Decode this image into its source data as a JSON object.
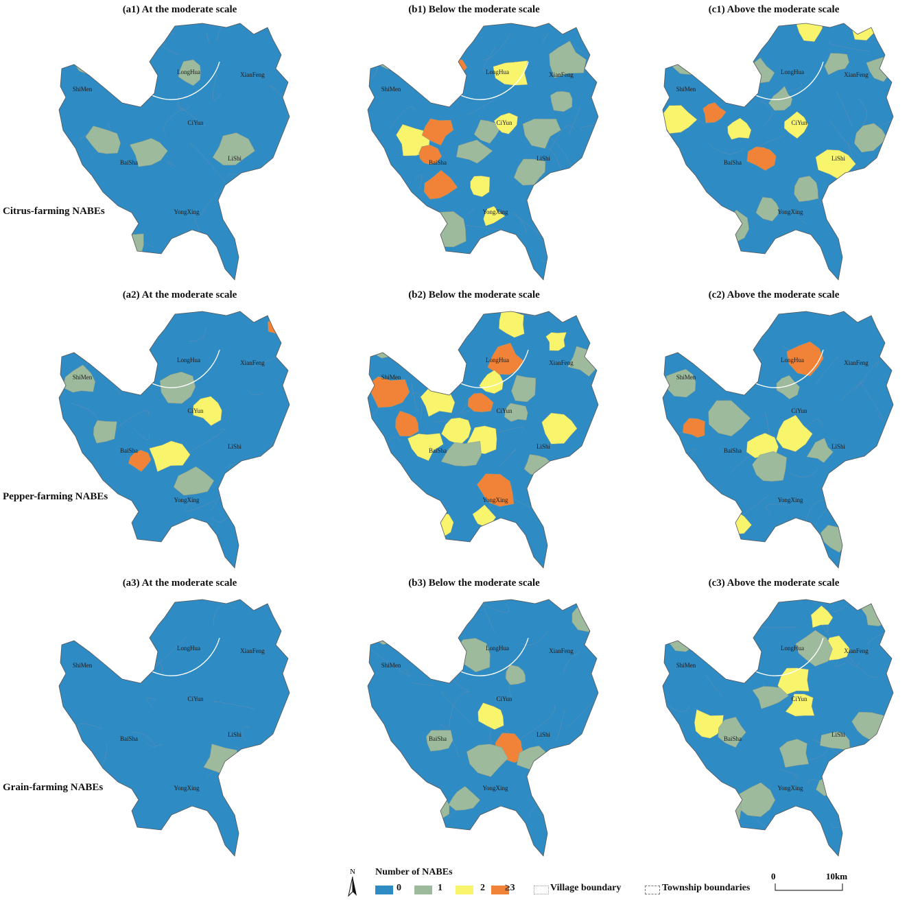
{
  "colors": {
    "class_0": "#2e8bc4",
    "class_1": "#9dbb9c",
    "class_2": "#f8f56d",
    "class_3": "#f08337",
    "township_line": "#555555",
    "village_line": "#6a8fb0"
  },
  "row_labels": [
    "Citrus-farming NABEs",
    "Pepper-farming NABEs",
    "Grain-farming NABEs"
  ],
  "town_names": [
    "LongHua",
    "XianFeng",
    "ShiMen",
    "CiYun",
    "BaiSha",
    "LiShi",
    "YongXing"
  ],
  "panels": [
    {
      "id": "a1",
      "title": "(a1) At the moderate scale",
      "blobs": [
        [
          0.12,
          0.16,
          1
        ],
        [
          0.55,
          0.2,
          1
        ],
        [
          0.2,
          0.47,
          1
        ],
        [
          0.38,
          0.5,
          1
        ],
        [
          0.72,
          0.5,
          1
        ],
        [
          0.3,
          0.86,
          1
        ],
        [
          0.98,
          0.02,
          1
        ]
      ]
    },
    {
      "id": "b1",
      "title": "(b1) Below the moderate scale",
      "blobs": [
        [
          0.13,
          0.14,
          1
        ],
        [
          0.36,
          0.18,
          3
        ],
        [
          0.6,
          0.2,
          2
        ],
        [
          0.82,
          0.15,
          1
        ],
        [
          0.93,
          0.06,
          1
        ],
        [
          0.2,
          0.46,
          2
        ],
        [
          0.26,
          0.52,
          3
        ],
        [
          0.3,
          0.42,
          3
        ],
        [
          0.5,
          0.42,
          1
        ],
        [
          0.58,
          0.4,
          2
        ],
        [
          0.72,
          0.42,
          1
        ],
        [
          0.3,
          0.64,
          3
        ],
        [
          0.47,
          0.63,
          2
        ],
        [
          0.52,
          0.75,
          2
        ],
        [
          0.35,
          0.8,
          1
        ],
        [
          0.45,
          0.5,
          1
        ],
        [
          0.8,
          0.3,
          1
        ],
        [
          0.68,
          0.58,
          1
        ]
      ]
    },
    {
      "id": "c1",
      "title": "(c1) Above the moderate scale",
      "blobs": [
        [
          0.13,
          0.14,
          1
        ],
        [
          0.62,
          0.03,
          2
        ],
        [
          0.83,
          0.02,
          2
        ],
        [
          0.72,
          0.16,
          1
        ],
        [
          0.9,
          0.18,
          1
        ],
        [
          0.08,
          0.38,
          2
        ],
        [
          0.22,
          0.35,
          3
        ],
        [
          0.32,
          0.42,
          2
        ],
        [
          0.42,
          0.52,
          3
        ],
        [
          0.55,
          0.4,
          2
        ],
        [
          0.72,
          0.55,
          2
        ],
        [
          0.86,
          0.45,
          1
        ],
        [
          0.45,
          0.72,
          1
        ],
        [
          0.3,
          0.8,
          1
        ],
        [
          0.6,
          0.65,
          1
        ],
        [
          0.4,
          0.2,
          1
        ],
        [
          0.5,
          0.3,
          1
        ]
      ]
    },
    {
      "id": "a2",
      "title": "(a2) At the moderate scale",
      "blobs": [
        [
          0.92,
          0.07,
          3
        ],
        [
          0.1,
          0.28,
          1
        ],
        [
          0.5,
          0.3,
          1
        ],
        [
          0.62,
          0.39,
          2
        ],
        [
          0.2,
          0.47,
          1
        ],
        [
          0.34,
          0.58,
          3
        ],
        [
          0.46,
          0.56,
          2
        ],
        [
          0.56,
          0.66,
          1
        ]
      ]
    },
    {
      "id": "b2",
      "title": "(b2) Below the moderate scale",
      "blobs": [
        [
          0.1,
          0.15,
          1
        ],
        [
          0.6,
          0.06,
          2
        ],
        [
          0.78,
          0.12,
          2
        ],
        [
          0.9,
          0.2,
          1
        ],
        [
          0.58,
          0.2,
          3
        ],
        [
          0.34,
          0.22,
          2
        ],
        [
          0.1,
          0.32,
          3
        ],
        [
          0.18,
          0.44,
          3
        ],
        [
          0.3,
          0.36,
          2
        ],
        [
          0.47,
          0.36,
          3
        ],
        [
          0.52,
          0.28,
          2
        ],
        [
          0.25,
          0.52,
          2
        ],
        [
          0.38,
          0.46,
          2
        ],
        [
          0.48,
          0.5,
          2
        ],
        [
          0.62,
          0.4,
          1
        ],
        [
          0.8,
          0.46,
          2
        ],
        [
          0.54,
          0.7,
          3
        ],
        [
          0.3,
          0.82,
          2
        ],
        [
          0.48,
          0.8,
          2
        ],
        [
          0.7,
          0.6,
          1
        ],
        [
          0.4,
          0.56,
          1
        ],
        [
          0.65,
          0.3,
          1
        ]
      ]
    },
    {
      "id": "c2",
      "title": "(c2) Above the moderate scale",
      "blobs": [
        [
          0.1,
          0.28,
          1
        ],
        [
          0.6,
          0.19,
          3
        ],
        [
          0.52,
          0.3,
          1
        ],
        [
          0.15,
          0.46,
          3
        ],
        [
          0.28,
          0.42,
          1
        ],
        [
          0.42,
          0.53,
          2
        ],
        [
          0.54,
          0.48,
          2
        ],
        [
          0.45,
          0.62,
          1
        ],
        [
          0.3,
          0.83,
          2
        ],
        [
          0.72,
          0.88,
          1
        ],
        [
          0.66,
          0.55,
          1
        ]
      ]
    },
    {
      "id": "a3",
      "title": "(a3) At the moderate scale",
      "blobs": [
        [
          0.68,
          0.63,
          1
        ]
      ]
    },
    {
      "id": "b3",
      "title": "(b3) Below the moderate scale",
      "blobs": [
        [
          0.1,
          0.15,
          1
        ],
        [
          0.44,
          0.22,
          1
        ],
        [
          0.62,
          0.3,
          1
        ],
        [
          0.33,
          0.23,
          1
        ],
        [
          0.3,
          0.55,
          1
        ],
        [
          0.52,
          0.46,
          2
        ],
        [
          0.6,
          0.58,
          3
        ],
        [
          0.5,
          0.62,
          1
        ],
        [
          0.7,
          0.62,
          1
        ],
        [
          0.4,
          0.78,
          1
        ],
        [
          0.3,
          0.8,
          1
        ],
        [
          0.9,
          0.08,
          1
        ]
      ]
    },
    {
      "id": "c3",
      "title": "(c3) Above the moderate scale",
      "blobs": [
        [
          0.1,
          0.16,
          1
        ],
        [
          0.65,
          0.08,
          2
        ],
        [
          0.72,
          0.2,
          2
        ],
        [
          0.62,
          0.2,
          1
        ],
        [
          0.88,
          0.06,
          1
        ],
        [
          0.55,
          0.32,
          2
        ],
        [
          0.58,
          0.42,
          2
        ],
        [
          0.45,
          0.38,
          1
        ],
        [
          0.2,
          0.5,
          2
        ],
        [
          0.3,
          0.52,
          1
        ],
        [
          0.55,
          0.6,
          1
        ],
        [
          0.72,
          0.55,
          1
        ],
        [
          0.85,
          0.5,
          1
        ],
        [
          0.7,
          0.72,
          1
        ],
        [
          0.4,
          0.78,
          1
        ],
        [
          0.28,
          0.82,
          1
        ]
      ]
    }
  ],
  "legend": {
    "title": "Number of NABEs",
    "classes": [
      "0",
      "1",
      "2",
      "≥3"
    ],
    "village_boundary": "Village boundary",
    "township_boundaries": "Township boundaries"
  },
  "north_label": "N",
  "scalebar": {
    "start": "0",
    "end": "10km"
  }
}
